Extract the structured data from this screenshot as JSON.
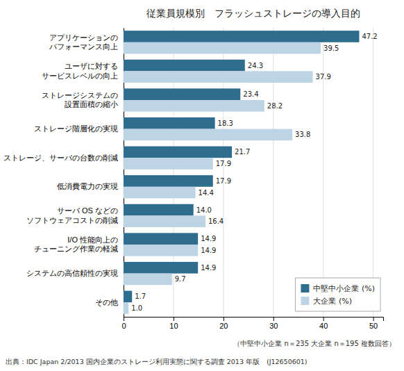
{
  "chart_data": {
    "type": "bar",
    "orientation": "horizontal",
    "title": "従業員規模別　フラッシュストレージの導入目的",
    "categories": [
      "アプリケーションの\nパフォーマンス向上",
      "ユーザに対する\nサービスレベルの向上",
      "ストレージシステムの\n設置面積の縮小",
      "ストレージ階層化の実現",
      "ストレージ、サーバの台数の削減",
      "低消費電力の実現",
      "サーバ OS などの\nソフトウェアコストの削減",
      "I/O 性能向上の\nチューニング作業の軽減",
      "システムの高信頼性の実現",
      "その他"
    ],
    "series": [
      {
        "name": "中堅中小企業 (%)",
        "color": "#2e6d8e",
        "values": [
          47.2,
          24.3,
          23.4,
          18.3,
          21.7,
          17.9,
          14.0,
          14.9,
          14.9,
          1.7
        ],
        "value_labels": [
          "47.2",
          "24.3",
          "23.4",
          "18.3",
          "21.7",
          "17.9",
          "14.0",
          "14.9",
          "14.9",
          "1.7"
        ]
      },
      {
        "name": "大企業 (%)",
        "color": "#bdd4e4",
        "values": [
          39.5,
          37.9,
          28.2,
          33.8,
          17.9,
          14.4,
          16.4,
          14.9,
          9.7,
          1.0
        ],
        "value_labels": [
          "39.5",
          "37.9",
          "28.2",
          "33.8",
          "17.9",
          "14.4",
          "16.4",
          "14.9",
          "9.7",
          "1.0"
        ]
      }
    ],
    "xlim": [
      0,
      52
    ],
    "xticks": [
      0,
      10,
      20,
      30,
      40,
      50
    ],
    "grid": true,
    "legend": "lower right",
    "data_labels": true,
    "annotations": [
      "（中堅中小企業 n＝235  大企業 n＝195 複数回答）",
      "出典：IDC Japan 2/2013 国内企業のストレージ利用実態に関する調査 2013 年版　(J12650601)"
    ]
  }
}
